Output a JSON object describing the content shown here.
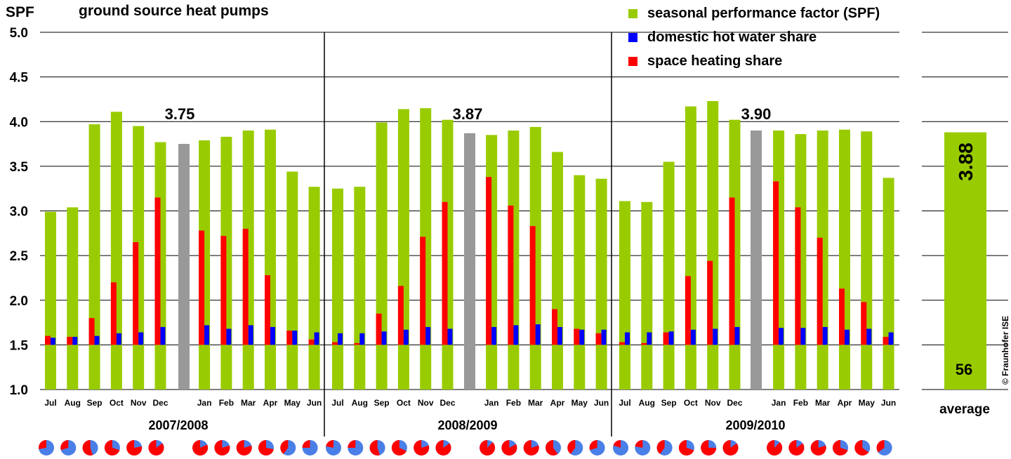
{
  "chart_data": {
    "type": "bar",
    "title": "ground source heat pumps",
    "ylabel": "SPF",
    "ylim": [
      1.0,
      5.0
    ],
    "yticks": [
      "1.0",
      "1.5",
      "2.0",
      "2.5",
      "3.0",
      "3.5",
      "4.0",
      "4.5",
      "5.0"
    ],
    "grid": true,
    "legend_position": "top-right",
    "legend": [
      {
        "label": "seasonal performance factor (SPF)",
        "color": "#99cc00"
      },
      {
        "label": "domestic hot water share",
        "color": "#0000ff"
      },
      {
        "label": "space heating share",
        "color": "#ff0000"
      }
    ],
    "colors": {
      "spf": "#99cc00",
      "dhw": "#0000ff",
      "heating": "#ff0000",
      "annual": "#999999",
      "pie_dhw": "#4a7fe8"
    },
    "periods": [
      {
        "label": "2007/2008",
        "annual": "3.75",
        "annual_value": 3.75,
        "months": [
          {
            "m": "Jul",
            "spf": 2.99,
            "heat": 1.6,
            "dhw": 1.58,
            "hs": 0.28
          },
          {
            "m": "Aug",
            "spf": 3.04,
            "heat": 1.59,
            "dhw": 1.59,
            "hs": 0.3
          },
          {
            "m": "Sep",
            "spf": 3.97,
            "heat": 1.8,
            "dhw": 1.6,
            "hs": 0.55
          },
          {
            "m": "Oct",
            "spf": 4.11,
            "heat": 2.2,
            "dhw": 1.63,
            "hs": 0.7
          },
          {
            "m": "Nov",
            "spf": 3.95,
            "heat": 2.65,
            "dhw": 1.64,
            "hs": 0.78
          },
          {
            "m": "Dec",
            "spf": 3.77,
            "heat": 3.15,
            "dhw": 1.7,
            "hs": 0.85
          },
          {
            "m": "Jan",
            "spf": 3.79,
            "heat": 2.78,
            "dhw": 1.72,
            "hs": 0.82
          },
          {
            "m": "Feb",
            "spf": 3.83,
            "heat": 2.72,
            "dhw": 1.68,
            "hs": 0.8
          },
          {
            "m": "Mar",
            "spf": 3.9,
            "heat": 2.8,
            "dhw": 1.72,
            "hs": 0.8
          },
          {
            "m": "Apr",
            "spf": 3.91,
            "heat": 2.28,
            "dhw": 1.7,
            "hs": 0.72
          },
          {
            "m": "May",
            "spf": 3.44,
            "heat": 1.66,
            "dhw": 1.66,
            "hs": 0.4
          },
          {
            "m": "Jun",
            "spf": 3.27,
            "heat": 1.56,
            "dhw": 1.64,
            "hs": 0.25
          }
        ]
      },
      {
        "label": "2008/2009",
        "annual": "3.87",
        "annual_value": 3.87,
        "months": [
          {
            "m": "Jul",
            "spf": 3.25,
            "heat": 1.53,
            "dhw": 1.63,
            "hs": 0.22
          },
          {
            "m": "Aug",
            "spf": 3.27,
            "heat": 1.52,
            "dhw": 1.63,
            "hs": 0.25
          },
          {
            "m": "Sep",
            "spf": 3.99,
            "heat": 1.85,
            "dhw": 1.65,
            "hs": 0.55
          },
          {
            "m": "Oct",
            "spf": 4.14,
            "heat": 2.16,
            "dhw": 1.67,
            "hs": 0.68
          },
          {
            "m": "Nov",
            "spf": 4.15,
            "heat": 2.71,
            "dhw": 1.7,
            "hs": 0.8
          },
          {
            "m": "Dec",
            "spf": 4.02,
            "heat": 3.1,
            "dhw": 1.68,
            "hs": 0.85
          },
          {
            "m": "Jan",
            "spf": 3.85,
            "heat": 3.38,
            "dhw": 1.7,
            "hs": 0.88
          },
          {
            "m": "Feb",
            "spf": 3.9,
            "heat": 3.06,
            "dhw": 1.72,
            "hs": 0.83
          },
          {
            "m": "Mar",
            "spf": 3.94,
            "heat": 2.83,
            "dhw": 1.73,
            "hs": 0.8
          },
          {
            "m": "Apr",
            "spf": 3.66,
            "heat": 1.9,
            "dhw": 1.7,
            "hs": 0.6
          },
          {
            "m": "May",
            "spf": 3.4,
            "heat": 1.68,
            "dhw": 1.67,
            "hs": 0.4
          },
          {
            "m": "Jun",
            "spf": 3.36,
            "heat": 1.63,
            "dhw": 1.67,
            "hs": 0.3
          }
        ]
      },
      {
        "label": "2009/2010",
        "annual": "3.90",
        "annual_value": 3.9,
        "months": [
          {
            "m": "Jul",
            "spf": 3.11,
            "heat": 1.53,
            "dhw": 1.64,
            "hs": 0.2
          },
          {
            "m": "Aug",
            "spf": 3.1,
            "heat": 1.52,
            "dhw": 1.64,
            "hs": 0.22
          },
          {
            "m": "Sep",
            "spf": 3.55,
            "heat": 1.64,
            "dhw": 1.65,
            "hs": 0.4
          },
          {
            "m": "Oct",
            "spf": 4.17,
            "heat": 2.27,
            "dhw": 1.67,
            "hs": 0.7
          },
          {
            "m": "Nov",
            "spf": 4.23,
            "heat": 2.44,
            "dhw": 1.68,
            "hs": 0.75
          },
          {
            "m": "Dec",
            "spf": 4.02,
            "heat": 3.15,
            "dhw": 1.7,
            "hs": 0.85
          },
          {
            "m": "Jan",
            "spf": 3.9,
            "heat": 3.33,
            "dhw": 1.69,
            "hs": 0.88
          },
          {
            "m": "Feb",
            "spf": 3.86,
            "heat": 3.04,
            "dhw": 1.69,
            "hs": 0.85
          },
          {
            "m": "Mar",
            "spf": 3.9,
            "heat": 2.7,
            "dhw": 1.7,
            "hs": 0.8
          },
          {
            "m": "Apr",
            "spf": 3.91,
            "heat": 2.13,
            "dhw": 1.67,
            "hs": 0.7
          },
          {
            "m": "May",
            "spf": 3.89,
            "heat": 1.98,
            "dhw": 1.68,
            "hs": 0.65
          },
          {
            "m": "Jun",
            "spf": 3.37,
            "heat": 1.59,
            "dhw": 1.64,
            "hs": 0.35
          }
        ]
      }
    ],
    "average": {
      "label": "average",
      "value": 3.88,
      "value_text": "3.88",
      "count": "56"
    },
    "copyright": "© Fraunhofer ISE"
  }
}
